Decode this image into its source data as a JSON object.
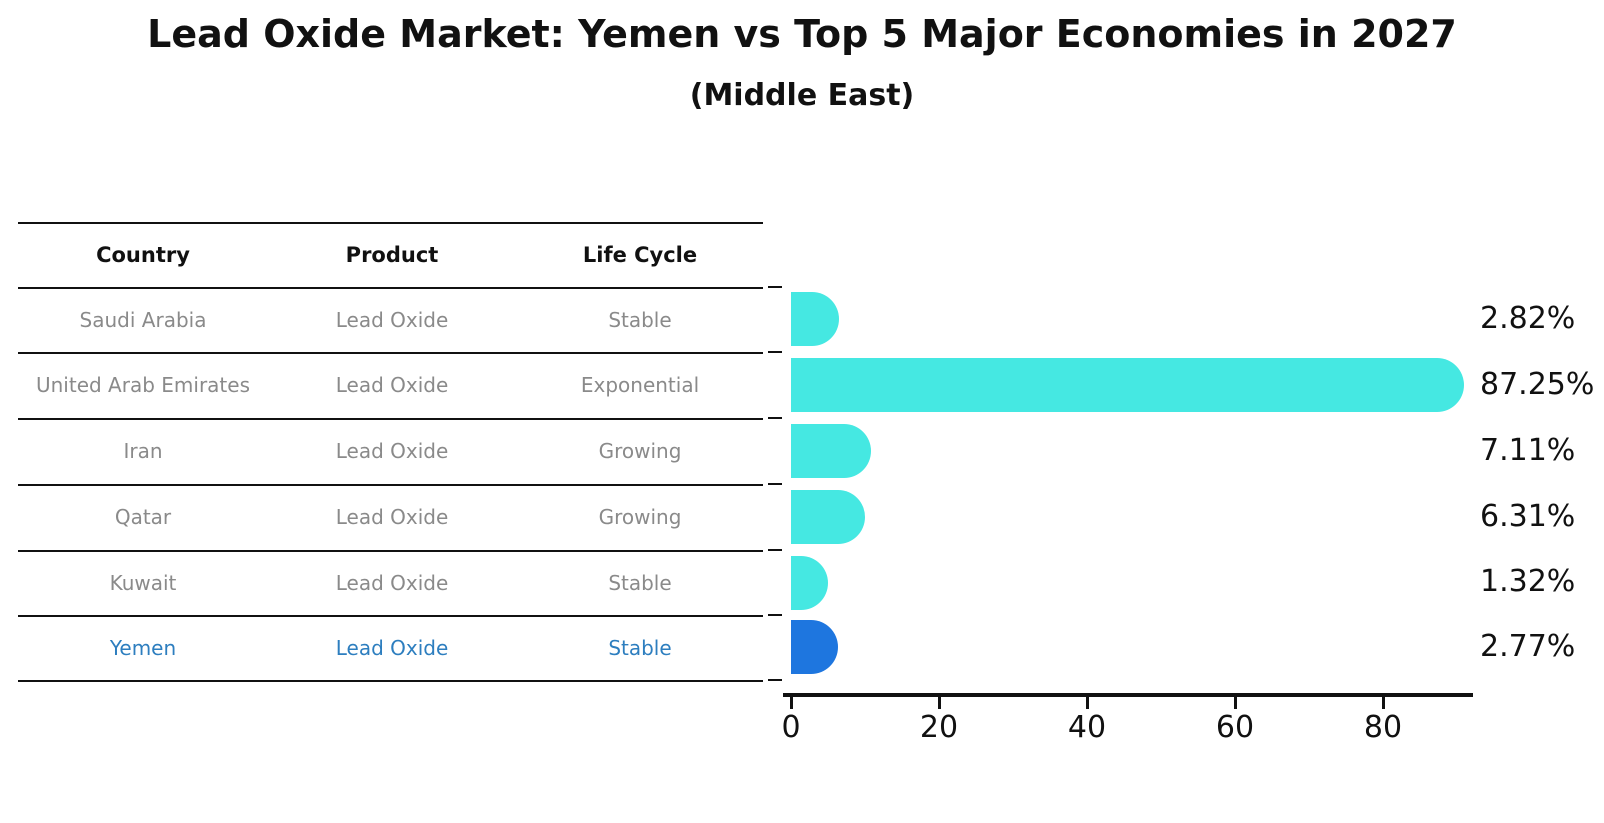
{
  "title": "Lead Oxide Market: Yemen vs Top 5 Major Economies in 2027",
  "subtitle": "(Middle East)",
  "table": {
    "headers": [
      "Country",
      "Product",
      "Life Cycle"
    ],
    "rows": [
      {
        "country": "Saudi Arabia",
        "product": "Lead Oxide",
        "life_cycle": "Stable",
        "highlighted": false
      },
      {
        "country": "United Arab Emirates",
        "product": "Lead Oxide",
        "life_cycle": "Exponential",
        "highlighted": false
      },
      {
        "country": "Iran",
        "product": "Lead Oxide",
        "life_cycle": "Growing",
        "highlighted": false
      },
      {
        "country": "Qatar",
        "product": "Lead Oxide",
        "life_cycle": "Growing",
        "highlighted": false
      },
      {
        "country": "Kuwait",
        "product": "Lead Oxide",
        "life_cycle": "Stable",
        "highlighted": false
      },
      {
        "country": "Yemen",
        "product": "Lead Oxide",
        "life_cycle": "Stable",
        "highlighted": true
      }
    ]
  },
  "chart_data": {
    "type": "bar",
    "orientation": "horizontal",
    "title": "Lead Oxide Market: Yemen vs Top 5 Major Economies in 2027",
    "subtitle": "(Middle East)",
    "categories": [
      "Saudi Arabia",
      "United Arab Emirates",
      "Iran",
      "Qatar",
      "Kuwait",
      "Yemen"
    ],
    "values": [
      2.82,
      87.25,
      7.11,
      6.31,
      1.32,
      2.77
    ],
    "value_labels": [
      "2.82%",
      "87.25%",
      "7.11%",
      "6.31%",
      "1.32%",
      "2.77%"
    ],
    "xlabel": "",
    "ylabel": "",
    "xticks": [
      0,
      20,
      40,
      60,
      80
    ],
    "xlim": [
      0,
      92
    ],
    "grid": false,
    "legend": "none",
    "highlight_category": "Yemen",
    "bar_color": "#45e8e2",
    "highlight_bar_color": "#1e76df",
    "highlight_text_color": "#2d7ebf",
    "text_color": "#111111",
    "muted_text_color": "#8a8a8a"
  }
}
